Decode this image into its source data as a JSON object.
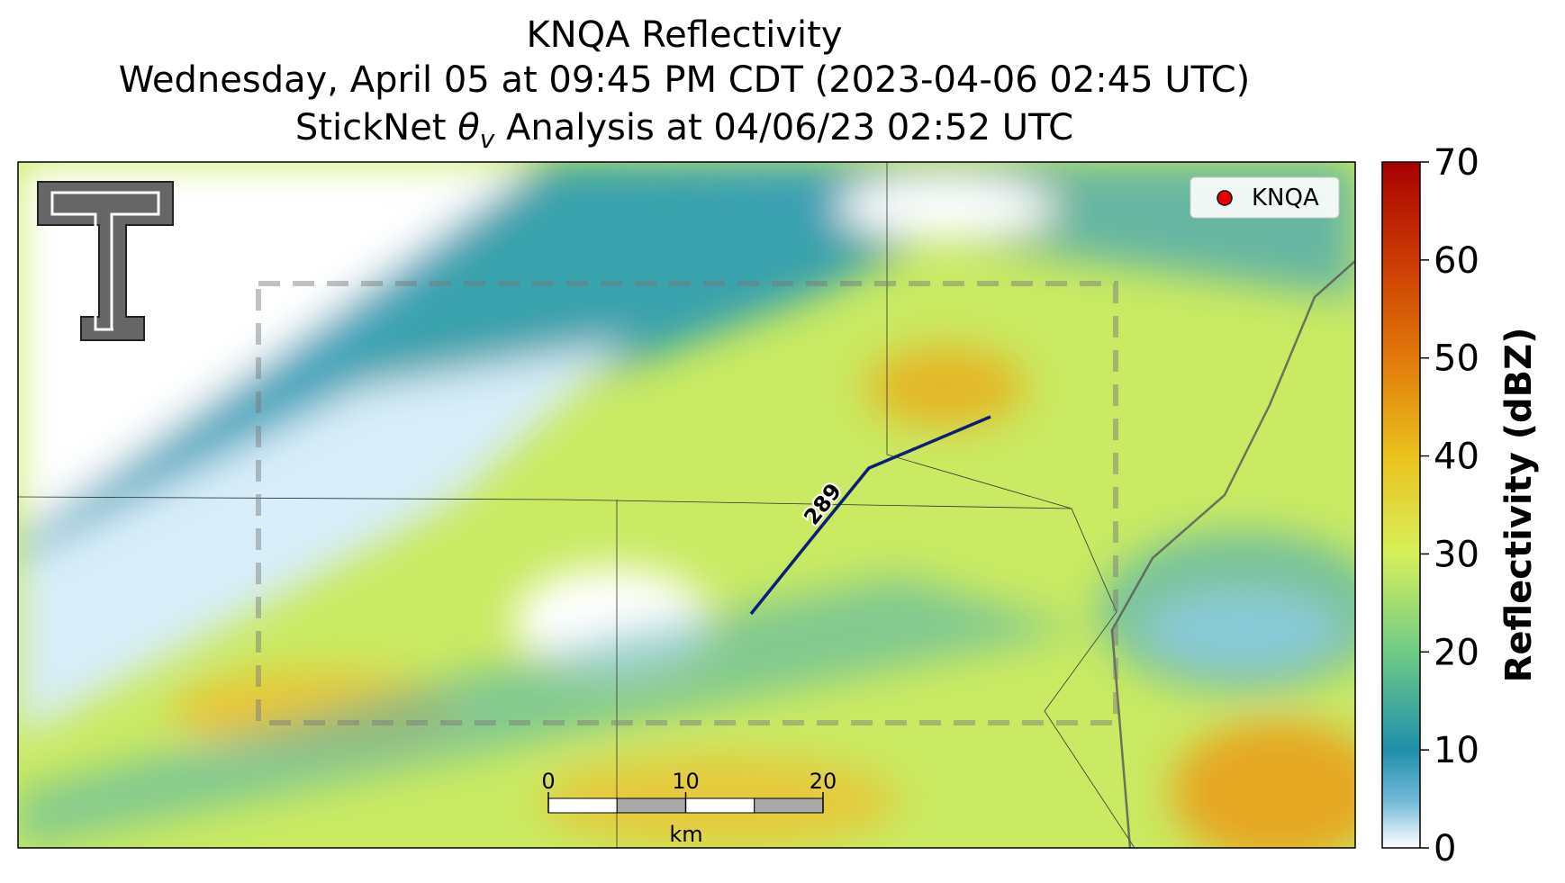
{
  "title": {
    "line1": "KNQA Reflectivity",
    "line2": "Wednesday, April 05 at 09:45 PM CDT (2023-04-06 02:45 UTC)",
    "line3": {
      "before": "StickNet ",
      "symbol": "θ",
      "subscript": "v",
      "after": " Analysis at 04/06/23 02:52 UTC"
    }
  },
  "legend": {
    "label": "KNQA"
  },
  "contour": {
    "label": "289"
  },
  "scale_bar": {
    "ticks": [
      0,
      10,
      20
    ],
    "unit": "km"
  },
  "colorbar": {
    "label": "Reflectivity (dBZ)",
    "lim": [
      0,
      70
    ],
    "ticks": [
      0,
      10,
      20,
      30,
      40,
      50,
      60,
      70
    ]
  }
}
